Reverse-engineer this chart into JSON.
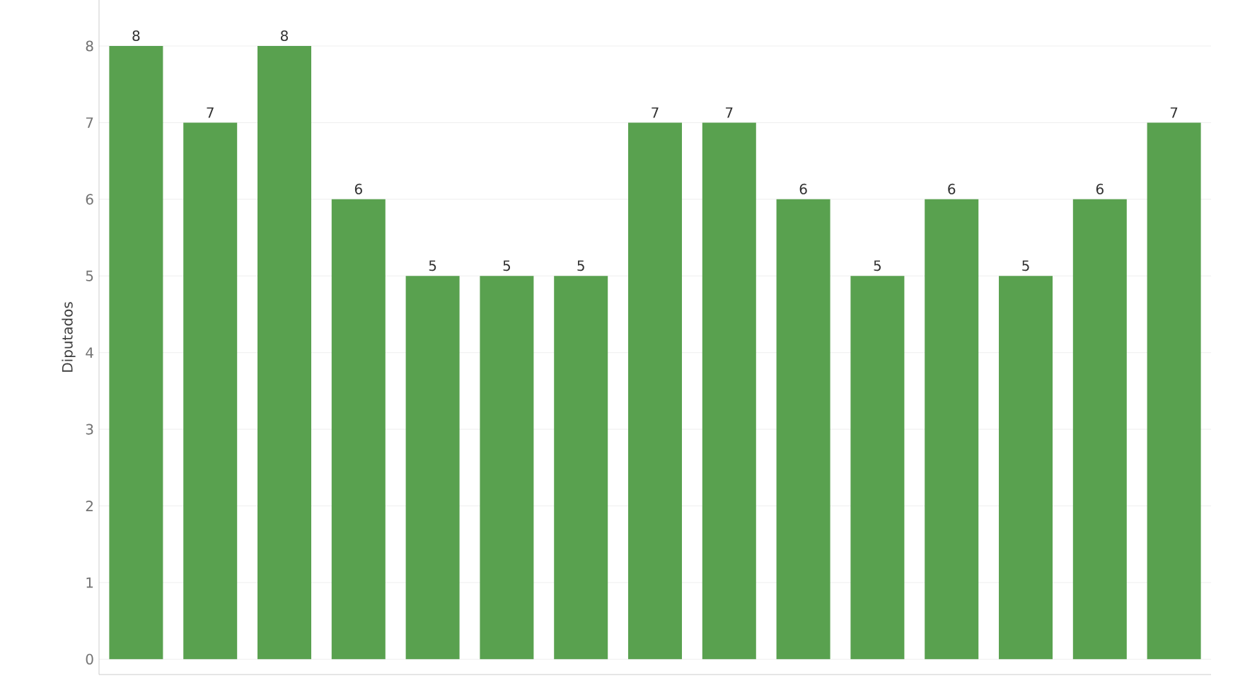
{
  "chart_data": {
    "type": "bar",
    "ylabel": "Diputados",
    "categories": [
      null,
      null,
      null,
      null,
      null,
      null,
      null,
      null,
      null,
      null,
      null,
      null,
      null,
      null,
      null
    ],
    "values": [
      8,
      7,
      8,
      6,
      5,
      5,
      5,
      7,
      7,
      6,
      5,
      6,
      5,
      6,
      7
    ],
    "color": "#59a14f",
    "ylim": [
      -0.2,
      8.6
    ],
    "yticks": [
      0,
      1,
      2,
      3,
      4,
      5,
      6,
      7,
      8
    ],
    "grid": "y",
    "data_labels": true
  }
}
